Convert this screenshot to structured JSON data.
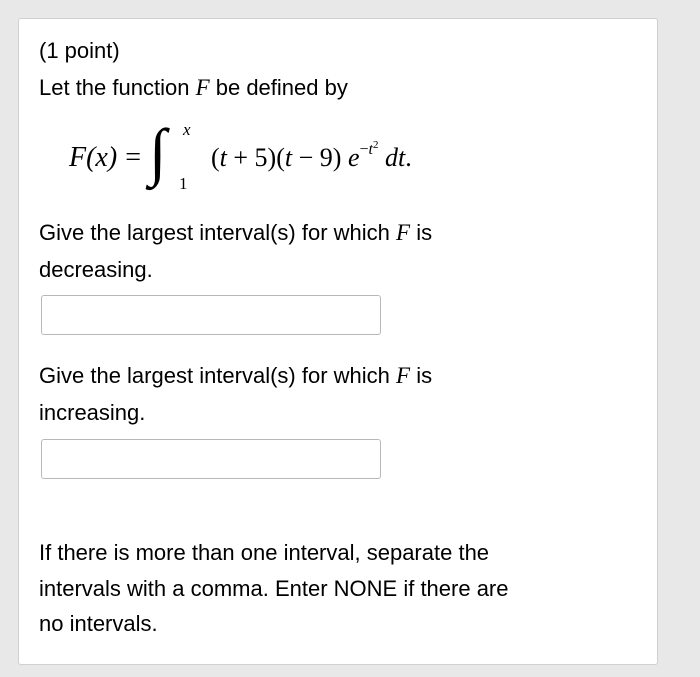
{
  "points_label": "(1 point)",
  "intro_pre": "Let the function ",
  "intro_var": "F",
  "intro_post": " be defined by",
  "formula": {
    "lhs": "F(x)",
    "upper": "x",
    "lower": "1",
    "integrand_open": "(",
    "t1": "t",
    "plus5": " + 5)(",
    "t2": "t",
    "minus9": " − 9) ",
    "e": "e",
    "exp_neg": "−",
    "exp_t": "t",
    "exp_2": "2",
    "space": " ",
    "dt_d": "d",
    "dt_t": "t",
    "dot": "."
  },
  "q1_pre": "Give the largest interval(s) for which ",
  "q1_var": "F",
  "q1_post": " is",
  "q1_word": "decreasing.",
  "q2_pre": "Give the largest interval(s) for which ",
  "q2_var": "F",
  "q2_post": " is",
  "q2_word": "increasing.",
  "hint1": "If there is more than one interval, separate the",
  "hint2": "intervals with a comma. Enter NONE if there are",
  "hint3": "no intervals.",
  "ans1": "",
  "ans2": ""
}
